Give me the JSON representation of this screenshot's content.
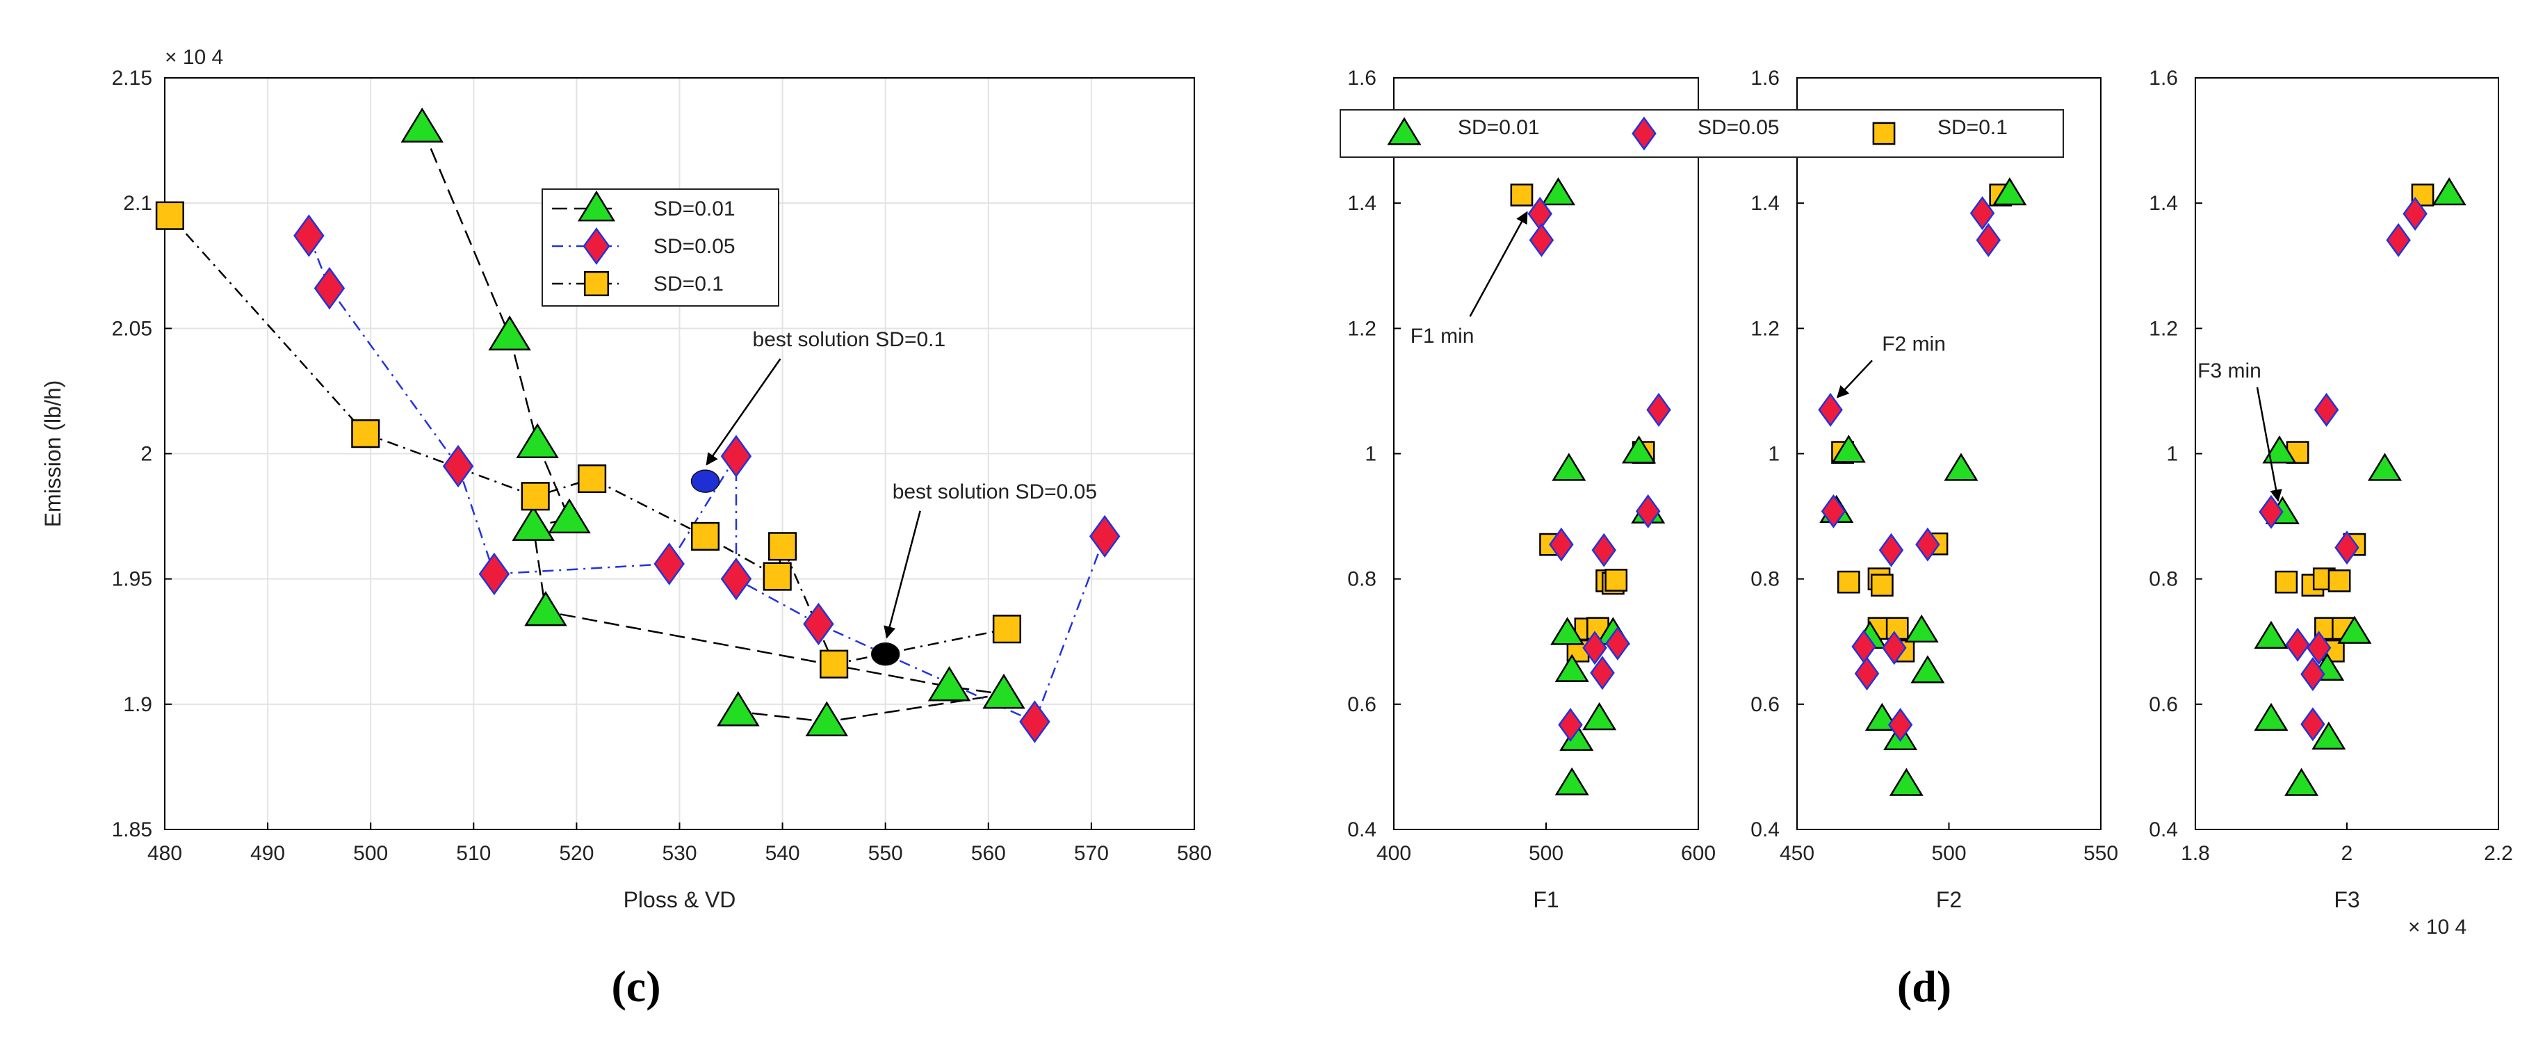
{
  "chart_data": [
    {
      "panel": "(c)",
      "type": "scatter",
      "xlabel": "Ploss & VD",
      "ylabel": "Emission (lb/h)",
      "y_exponent_label": "× 10 4",
      "xlim": [
        480,
        580
      ],
      "ylim": [
        1.85,
        2.15
      ],
      "xticks": [
        "480",
        "490",
        "500",
        "510",
        "520",
        "530",
        "540",
        "550",
        "560",
        "570",
        "580"
      ],
      "yticks": [
        "1.85",
        "1.9",
        "1.95",
        "2",
        "2.05",
        "2.1",
        "2.15"
      ],
      "grid": true,
      "legend_position": "top-center",
      "series": [
        {
          "name": "SD=0.01",
          "marker": "triangle",
          "fill": "#22dd22",
          "stroke": "#000000",
          "line_color": "#000000",
          "dash": "long-dash",
          "points": [
            [
              505.0,
              2.13
            ],
            [
              513.5,
              2.047
            ],
            [
              516.2,
              2.004
            ],
            [
              519.3,
              1.974
            ],
            [
              515.8,
              1.971
            ],
            [
              517.0,
              1.937
            ],
            [
              556.2,
              1.907
            ],
            [
              561.5,
              1.904
            ],
            [
              544.3,
              1.893
            ],
            [
              535.7,
              1.897
            ]
          ]
        },
        {
          "name": "SD=0.05",
          "marker": "diamond",
          "fill": "#ee1c3c",
          "stroke": "#2233dd",
          "line_color": "#2233dd",
          "dash": "dash-dot",
          "points": [
            [
              494.0,
              2.087
            ],
            [
              496.0,
              2.066
            ],
            [
              508.5,
              1.995
            ],
            [
              512.0,
              1.952
            ],
            [
              529.0,
              1.956
            ],
            [
              535.5,
              1.999
            ],
            [
              535.5,
              1.95
            ],
            [
              543.5,
              1.932
            ],
            [
              564.5,
              1.893
            ],
            [
              571.3,
              1.967
            ]
          ]
        },
        {
          "name": "SD=0.1",
          "marker": "square",
          "fill": "#ffc20e",
          "stroke": "#000000",
          "line_color": "#000000",
          "dash": "dash-dot",
          "points": [
            [
              480.5,
              2.095
            ],
            [
              499.5,
              2.008
            ],
            [
              516.0,
              1.983
            ],
            [
              521.5,
              1.99
            ],
            [
              532.5,
              1.967
            ],
            [
              539.5,
              1.951
            ],
            [
              540.0,
              1.963
            ],
            [
              545.0,
              1.916
            ],
            [
              561.8,
              1.93
            ]
          ]
        }
      ],
      "highlights": [
        {
          "label": "best solution SD=0.1",
          "x": 532.5,
          "y": 1.989,
          "color": "#1f2fd6"
        },
        {
          "label": "best solution SD=0.05",
          "x": 550.0,
          "y": 1.92,
          "color": "#000000"
        }
      ]
    },
    {
      "panel": "(d)",
      "type": "scatter",
      "ylim": [
        0.4,
        1.6
      ],
      "yticks": [
        "0.4",
        "0.6",
        "0.8",
        "1",
        "1.2",
        "1.4",
        "1.6"
      ],
      "legend_position": "top",
      "legend": [
        "SD=0.01",
        "SD=0.05",
        "SD=0.1"
      ],
      "subplots": [
        {
          "xlabel": "F1",
          "xlim": [
            400,
            600
          ],
          "xticks": [
            "400",
            "500",
            "600"
          ],
          "annotation": {
            "label": "F1 min",
            "x": 482,
            "y": 1.41
          },
          "SD_0_01": [
            [
              508,
              1.415
            ],
            [
              515,
              0.975
            ],
            [
              567,
              0.907
            ],
            [
              561,
              1.003
            ],
            [
              514,
              0.713
            ],
            [
              517,
              0.654
            ],
            [
              544,
              0.713
            ],
            [
              520,
              0.544
            ],
            [
              535,
              0.577
            ],
            [
              517,
              0.473
            ]
          ],
          "SD_0_05": [
            [
              496,
              1.383
            ],
            [
              497,
              1.341
            ],
            [
              574,
              1.07
            ],
            [
              567,
              0.908
            ],
            [
              510,
              0.855
            ],
            [
              538,
              0.846
            ],
            [
              532,
              0.69
            ],
            [
              547,
              0.697
            ],
            [
              537,
              0.65
            ],
            [
              516,
              0.567
            ]
          ],
          "SD_0_1": [
            [
              484,
              1.413
            ],
            [
              564,
              1.002
            ],
            [
              503,
              0.855
            ],
            [
              540,
              0.797
            ],
            [
              544,
              0.793
            ],
            [
              546,
              0.798
            ],
            [
              526,
              0.72
            ],
            [
              534,
              0.721
            ],
            [
              521,
              0.685
            ]
          ]
        },
        {
          "xlabel": "F2",
          "xlim": [
            450,
            550
          ],
          "xticks": [
            "450",
            "500",
            "550"
          ],
          "annotation": {
            "label": "F2 min",
            "x": 461,
            "y": 1.07
          },
          "SD_0_01": [
            [
              520,
              1.415
            ],
            [
              467,
              1.004
            ],
            [
              504,
              0.975
            ],
            [
              463,
              0.908
            ],
            [
              474,
              0.707
            ],
            [
              491,
              0.717
            ],
            [
              493,
              0.652
            ],
            [
              478,
              0.576
            ],
            [
              484,
              0.545
            ],
            [
              486,
              0.472
            ]
          ],
          "SD_0_05": [
            [
              511,
              1.384
            ],
            [
              513,
              1.341
            ],
            [
              461,
              1.07
            ],
            [
              462,
              0.908
            ],
            [
              481,
              0.846
            ],
            [
              493,
              0.855
            ],
            [
              472,
              0.692
            ],
            [
              482,
              0.69
            ],
            [
              473,
              0.649
            ],
            [
              484,
              0.567
            ]
          ],
          "SD_0_1": [
            [
              517,
              1.413
            ],
            [
              465,
              1.002
            ],
            [
              496,
              0.856
            ],
            [
              467,
              0.795
            ],
            [
              477,
              0.8
            ],
            [
              478,
              0.79
            ],
            [
              477,
              0.721
            ],
            [
              483,
              0.721
            ],
            [
              485,
              0.685
            ]
          ]
        },
        {
          "xlabel": "F3",
          "x_exponent_label": "× 10 4",
          "xlim": [
            1.8,
            2.2
          ],
          "xticks": [
            "1.8",
            "2",
            "2.2"
          ],
          "annotation": {
            "label": "F3 min",
            "x": 1.9,
            "y": 0.905
          },
          "SD_0_01": [
            [
              2.135,
              1.415
            ],
            [
              1.911,
              1.003
            ],
            [
              2.05,
              0.975
            ],
            [
              1.915,
              0.906
            ],
            [
              1.9,
              0.707
            ],
            [
              2.01,
              0.715
            ],
            [
              1.974,
              0.656
            ],
            [
              1.9,
              0.576
            ],
            [
              1.976,
              0.546
            ],
            [
              1.94,
              0.472
            ]
          ],
          "SD_0_05": [
            [
              2.09,
              1.383
            ],
            [
              2.068,
              1.341
            ],
            [
              1.973,
              1.07
            ],
            [
              1.9,
              0.907
            ],
            [
              2.0,
              0.85
            ],
            [
              1.935,
              0.695
            ],
            [
              1.963,
              0.69
            ],
            [
              1.955,
              0.648
            ],
            [
              1.955,
              0.568
            ]
          ],
          "SD_0_1": [
            [
              2.1,
              1.413
            ],
            [
              1.935,
              1.002
            ],
            [
              2.01,
              0.855
            ],
            [
              1.92,
              0.795
            ],
            [
              1.955,
              0.79
            ],
            [
              1.97,
              0.8
            ],
            [
              1.99,
              0.797
            ],
            [
              1.972,
              0.721
            ],
            [
              1.995,
              0.721
            ],
            [
              1.982,
              0.685
            ]
          ]
        }
      ]
    }
  ],
  "panel_labels": {
    "c": "(c)",
    "d": "(d)"
  }
}
